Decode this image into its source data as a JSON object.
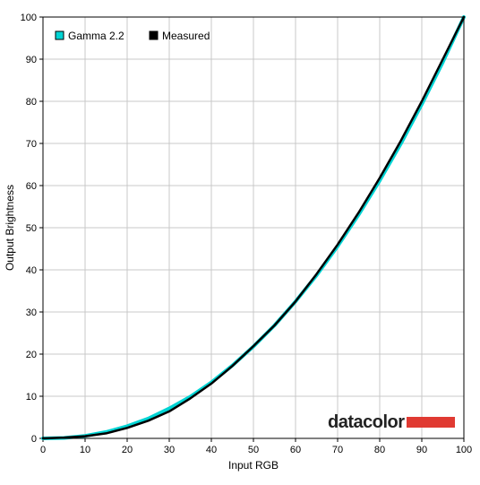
{
  "chart_data": {
    "type": "line",
    "xlabel": "Input RGB",
    "ylabel": "Output Brightness",
    "xlim": [
      0,
      100
    ],
    "ylim": [
      0,
      100
    ],
    "x_ticks": [
      0,
      10,
      20,
      30,
      40,
      50,
      60,
      70,
      80,
      90,
      100
    ],
    "y_ticks": [
      0,
      10,
      20,
      30,
      40,
      50,
      60,
      70,
      80,
      90,
      100
    ],
    "grid": true,
    "legend_position": "top-left",
    "series": [
      {
        "name": "Gamma 2.2",
        "color": "#00d4d4",
        "x": [
          0,
          5,
          10,
          15,
          20,
          25,
          30,
          35,
          40,
          45,
          50,
          55,
          60,
          65,
          70,
          75,
          80,
          85,
          90,
          95,
          100
        ],
        "values": [
          0,
          0.1,
          0.6,
          1.5,
          2.9,
          4.7,
          7.1,
          9.9,
          13.3,
          17.3,
          21.8,
          26.8,
          32.5,
          38.7,
          45.6,
          53.1,
          61.2,
          69.9,
          79.3,
          89.3,
          100
        ]
      },
      {
        "name": "Measured",
        "color": "#000000",
        "x": [
          0,
          5,
          10,
          15,
          20,
          25,
          30,
          35,
          40,
          45,
          50,
          55,
          60,
          65,
          70,
          75,
          80,
          85,
          90,
          95,
          100
        ],
        "values": [
          0,
          0.2,
          0.5,
          1.2,
          2.5,
          4.2,
          6.4,
          9.5,
          13.0,
          17.2,
          21.9,
          26.8,
          32.5,
          39.0,
          46.0,
          53.6,
          61.8,
          70.6,
          80.0,
          90.0,
          100
        ]
      }
    ],
    "watermark": "datacolor"
  }
}
